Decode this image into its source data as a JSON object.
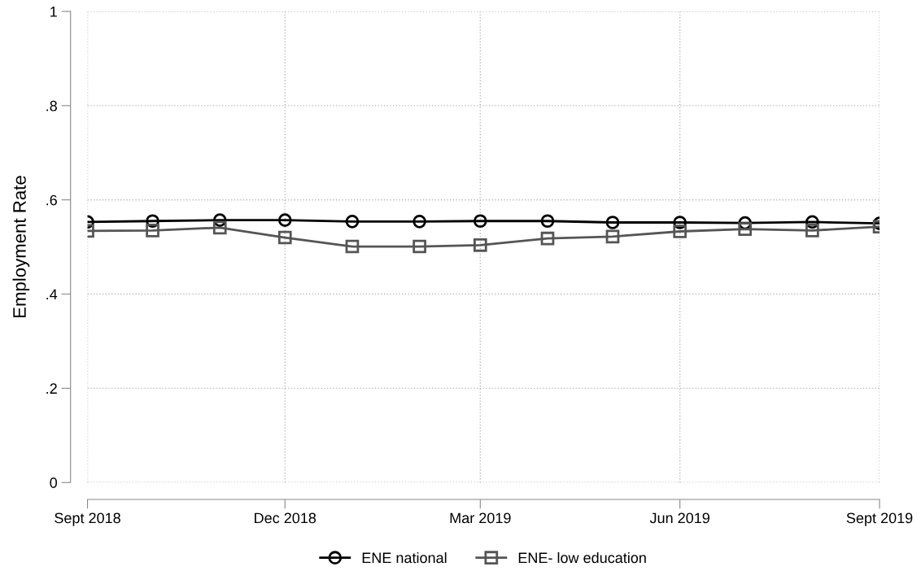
{
  "chart_data": {
    "type": "line",
    "ylabel": "Employment Rate",
    "x": [
      "2018-09",
      "2018-10",
      "2018-11",
      "2018-12",
      "2019-01",
      "2019-02",
      "2019-03",
      "2019-04",
      "2019-05",
      "2019-06",
      "2019-07",
      "2019-08",
      "2019-09"
    ],
    "series": [
      {
        "name": "ENE national",
        "color": "#000000",
        "marker": "circle",
        "values": [
          0.553,
          0.555,
          0.557,
          0.557,
          0.554,
          0.554,
          0.555,
          0.555,
          0.552,
          0.552,
          0.551,
          0.553,
          0.55
        ]
      },
      {
        "name": "ENE- low education",
        "color": "#555555",
        "marker": "square",
        "values": [
          0.534,
          0.535,
          0.541,
          0.52,
          0.501,
          0.501,
          0.504,
          0.518,
          0.522,
          0.533,
          0.538,
          0.535,
          0.543
        ]
      }
    ],
    "xlim": [
      "2018-09",
      "2019-09"
    ],
    "xticks": [
      {
        "value": "2018-09",
        "label": "Sept 2018"
      },
      {
        "value": "2018-12",
        "label": "Dec 2018"
      },
      {
        "value": "2019-03",
        "label": "Mar 2019"
      },
      {
        "value": "2019-06",
        "label": "Jun 2019"
      },
      {
        "value": "2019-09",
        "label": "Sept 2019"
      }
    ],
    "ylim": [
      0,
      1
    ],
    "yticks": [
      0,
      {
        "value": 0.2,
        "label": ".2"
      },
      {
        "value": 0.4,
        "label": ".4"
      },
      {
        "value": 0.6,
        "label": ".6"
      },
      {
        "value": 0.8,
        "label": ".8"
      },
      1
    ],
    "grid": true,
    "legend": "bottom",
    "line_style": "solid"
  }
}
